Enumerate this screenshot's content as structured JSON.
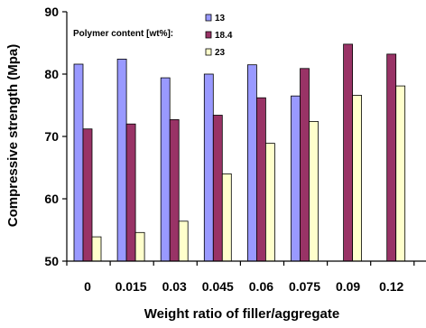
{
  "chart_data": {
    "type": "bar",
    "title": "",
    "xlabel": "Weight ratio of filler/aggregate",
    "ylabel": "Compressive strength (Mpa)",
    "ylim": [
      50,
      90
    ],
    "yticks": [
      50,
      60,
      70,
      80,
      90
    ],
    "grid": false,
    "categories": [
      "0",
      "0.015",
      "0.03",
      "0.045",
      "0.06",
      "0.075",
      "0.09",
      "0.12"
    ],
    "legend": {
      "title": "Polymer content [wt%]:",
      "placement": "top"
    },
    "series": [
      {
        "name": "13",
        "color": "#9999ff",
        "values": [
          81.6,
          82.4,
          79.4,
          80.0,
          81.5,
          76.5,
          null,
          null
        ]
      },
      {
        "name": "18.4",
        "color": "#993366",
        "values": [
          71.2,
          72.0,
          72.7,
          73.4,
          76.2,
          80.9,
          84.8,
          83.2
        ]
      },
      {
        "name": "23",
        "color": "#ffffcc",
        "values": [
          53.9,
          54.6,
          56.4,
          64.0,
          68.9,
          72.4,
          76.6,
          78.1
        ]
      }
    ]
  }
}
